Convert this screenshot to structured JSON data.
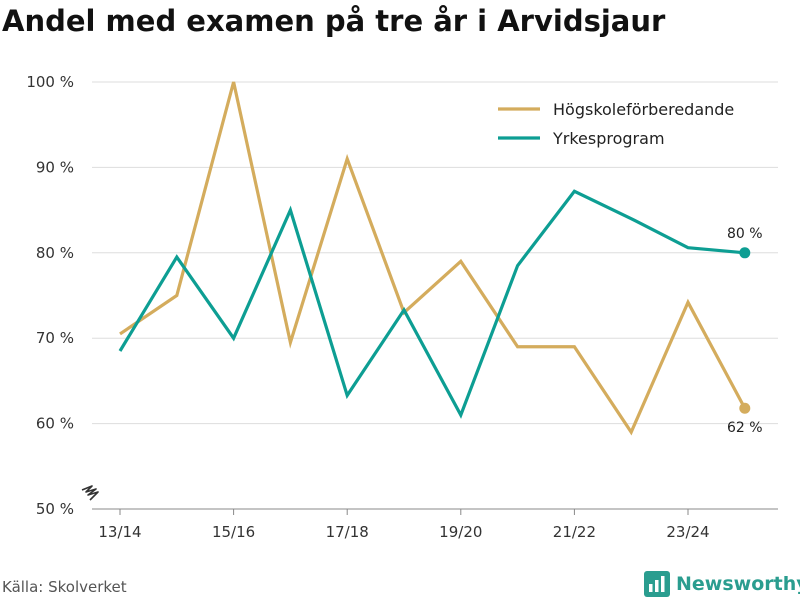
{
  "title": "Andel med examen på tre år i Arvidsjaur",
  "source": "Källa: Skolverket",
  "brand": {
    "name": "Newsworthy",
    "icon": "newsworthy-logo-icon"
  },
  "axis_break_icon": "axis-break-icon",
  "colors": {
    "hogskole": "#d4ac5d",
    "yrkes": "#0d9e93",
    "grid": "#dddddd",
    "brand": "#2a9d8f"
  },
  "chart_data": {
    "type": "line",
    "title": "Andel med examen på tre år i Arvidsjaur",
    "xlabel": "",
    "ylabel": "",
    "categories": [
      "13/14",
      "14/15",
      "15/16",
      "16/17",
      "17/18",
      "18/19",
      "19/20",
      "20/21",
      "21/22",
      "22/23",
      "23/24",
      "24/25"
    ],
    "x_tick_labels": [
      "13/14",
      "",
      "15/16",
      "",
      "17/18",
      "",
      "19/20",
      "",
      "21/22",
      "",
      "23/24",
      ""
    ],
    "ylim": [
      50,
      100
    ],
    "y_ticks": [
      50,
      60,
      70,
      80,
      90,
      100
    ],
    "y_tick_labels": [
      "50 %",
      "60 %",
      "70 %",
      "80 %",
      "90 %",
      "100 %"
    ],
    "grid": true,
    "legend_position": "top-right",
    "series": [
      {
        "name": "Högskoleförberedande",
        "color": "#d4ac5d",
        "values": [
          70.5,
          75,
          100,
          69.5,
          91,
          73,
          79,
          69,
          69,
          59,
          74.2,
          61.8
        ],
        "end_label": "62 %"
      },
      {
        "name": "Yrkesprogram",
        "color": "#0d9e93",
        "values": [
          68.5,
          79.5,
          70,
          85,
          63.3,
          73.3,
          61,
          78.5,
          87.2,
          84,
          80.6,
          80
        ],
        "end_label": "80 %"
      }
    ]
  }
}
